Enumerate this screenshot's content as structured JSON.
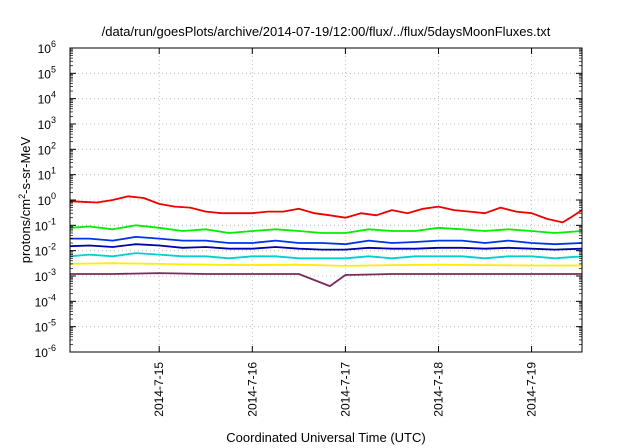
{
  "chart_data": {
    "type": "line",
    "title": "/data/run/goesPlots/archive/2014-07-19/12:00/flux/../flux/5daysMoonFluxes.txt",
    "xlabel": "Coordinated Universal Time (UTC)",
    "ylabel": {
      "before": "protons/cm",
      "sup": "2",
      "after": "-s-sr-MeV"
    },
    "y_scale": "log",
    "ylim": [
      1e-06,
      1000000.0
    ],
    "y_ticks": [
      {
        "value": 1e-06,
        "base": "10",
        "exp": "-6"
      },
      {
        "value": 1e-05,
        "base": "10",
        "exp": "-5"
      },
      {
        "value": 0.0001,
        "base": "10",
        "exp": "-4"
      },
      {
        "value": 0.001,
        "base": "10",
        "exp": "-3"
      },
      {
        "value": 0.01,
        "base": "10",
        "exp": "-2"
      },
      {
        "value": 0.1,
        "base": "10",
        "exp": "-1"
      },
      {
        "value": 1,
        "base": "10",
        "exp": "0"
      },
      {
        "value": 10,
        "base": "10",
        "exp": "1"
      },
      {
        "value": 100,
        "base": "10",
        "exp": "2"
      },
      {
        "value": 1000,
        "base": "10",
        "exp": "3"
      },
      {
        "value": 10000,
        "base": "10",
        "exp": "4"
      },
      {
        "value": 100000,
        "base": "10",
        "exp": "5"
      },
      {
        "value": 1000000,
        "base": "10",
        "exp": "6"
      }
    ],
    "xlim": [
      "2014-07-14T01:00",
      "2014-07-19T13:00"
    ],
    "x_ticks": [
      {
        "value": "2014-07-15T00:00",
        "label": "2014-7-15"
      },
      {
        "value": "2014-07-16T00:00",
        "label": "2014-7-16"
      },
      {
        "value": "2014-07-17T00:00",
        "label": "2014-7-17"
      },
      {
        "value": "2014-07-18T00:00",
        "label": "2014-7-18"
      },
      {
        "value": "2014-07-19T00:00",
        "label": "2014-7-19"
      }
    ],
    "grid": true,
    "legend": "none",
    "series": [
      {
        "color": "#ee0000",
        "x": [
          "2014-07-14T01:00",
          "2014-07-14T04:00",
          "2014-07-14T08:00",
          "2014-07-14T12:00",
          "2014-07-14T16:00",
          "2014-07-14T20:00",
          "2014-07-15T00:00",
          "2014-07-15T04:00",
          "2014-07-15T08:00",
          "2014-07-15T12:00",
          "2014-07-15T16:00",
          "2014-07-15T20:00",
          "2014-07-16T00:00",
          "2014-07-16T04:00",
          "2014-07-16T08:00",
          "2014-07-16T12:00",
          "2014-07-16T16:00",
          "2014-07-16T20:00",
          "2014-07-17T00:00",
          "2014-07-17T04:00",
          "2014-07-17T08:00",
          "2014-07-17T12:00",
          "2014-07-17T16:00",
          "2014-07-17T20:00",
          "2014-07-18T00:00",
          "2014-07-18T04:00",
          "2014-07-18T08:00",
          "2014-07-18T12:00",
          "2014-07-18T16:00",
          "2014-07-18T20:00",
          "2014-07-19T00:00",
          "2014-07-19T04:00",
          "2014-07-19T08:00",
          "2014-07-19T10:00",
          "2014-07-19T13:00"
        ],
        "y": [
          0.9,
          0.85,
          0.8,
          1.0,
          1.4,
          1.2,
          0.7,
          0.55,
          0.5,
          0.35,
          0.3,
          0.3,
          0.3,
          0.35,
          0.35,
          0.45,
          0.3,
          0.25,
          0.2,
          0.3,
          0.25,
          0.4,
          0.3,
          0.45,
          0.55,
          0.4,
          0.35,
          0.3,
          0.5,
          0.35,
          0.3,
          0.18,
          0.13,
          0.2,
          0.4
        ]
      },
      {
        "color": "#00ee00",
        "x": [
          "2014-07-14T01:00",
          "2014-07-14T06:00",
          "2014-07-14T12:00",
          "2014-07-14T18:00",
          "2014-07-15T00:00",
          "2014-07-15T06:00",
          "2014-07-15T12:00",
          "2014-07-15T18:00",
          "2014-07-16T00:00",
          "2014-07-16T06:00",
          "2014-07-16T12:00",
          "2014-07-16T18:00",
          "2014-07-17T00:00",
          "2014-07-17T06:00",
          "2014-07-17T12:00",
          "2014-07-17T18:00",
          "2014-07-18T00:00",
          "2014-07-18T06:00",
          "2014-07-18T12:00",
          "2014-07-18T18:00",
          "2014-07-19T00:00",
          "2014-07-19T06:00",
          "2014-07-19T13:00"
        ],
        "y": [
          0.08,
          0.09,
          0.07,
          0.1,
          0.08,
          0.06,
          0.07,
          0.05,
          0.06,
          0.07,
          0.06,
          0.05,
          0.05,
          0.07,
          0.06,
          0.06,
          0.08,
          0.07,
          0.06,
          0.07,
          0.06,
          0.05,
          0.06
        ]
      },
      {
        "color": "#00d0d0",
        "x": [
          "2014-07-14T01:00",
          "2014-07-14T06:00",
          "2014-07-14T12:00",
          "2014-07-14T18:00",
          "2014-07-15T00:00",
          "2014-07-15T06:00",
          "2014-07-15T12:00",
          "2014-07-15T18:00",
          "2014-07-16T00:00",
          "2014-07-16T06:00",
          "2014-07-16T12:00",
          "2014-07-16T18:00",
          "2014-07-17T00:00",
          "2014-07-17T06:00",
          "2014-07-17T12:00",
          "2014-07-17T18:00",
          "2014-07-18T00:00",
          "2014-07-18T06:00",
          "2014-07-18T12:00",
          "2014-07-18T18:00",
          "2014-07-19T00:00",
          "2014-07-19T06:00",
          "2014-07-19T13:00"
        ],
        "y": [
          0.006,
          0.007,
          0.006,
          0.008,
          0.007,
          0.006,
          0.006,
          0.005,
          0.006,
          0.006,
          0.005,
          0.005,
          0.005,
          0.006,
          0.005,
          0.006,
          0.006,
          0.006,
          0.005,
          0.006,
          0.006,
          0.005,
          0.006
        ]
      },
      {
        "color": "#0033ee",
        "x": [
          "2014-07-14T01:00",
          "2014-07-14T06:00",
          "2014-07-14T12:00",
          "2014-07-14T18:00",
          "2014-07-15T00:00",
          "2014-07-15T06:00",
          "2014-07-15T12:00",
          "2014-07-15T18:00",
          "2014-07-16T00:00",
          "2014-07-16T06:00",
          "2014-07-16T12:00",
          "2014-07-16T18:00",
          "2014-07-17T00:00",
          "2014-07-17T06:00",
          "2014-07-17T12:00",
          "2014-07-17T18:00",
          "2014-07-18T00:00",
          "2014-07-18T06:00",
          "2014-07-18T12:00",
          "2014-07-18T18:00",
          "2014-07-19T00:00",
          "2014-07-19T06:00",
          "2014-07-19T13:00"
        ],
        "y": [
          0.03,
          0.03,
          0.025,
          0.035,
          0.03,
          0.025,
          0.025,
          0.02,
          0.02,
          0.025,
          0.02,
          0.02,
          0.018,
          0.025,
          0.02,
          0.022,
          0.025,
          0.025,
          0.02,
          0.025,
          0.02,
          0.018,
          0.02
        ]
      },
      {
        "color": "#0000aa",
        "x": [
          "2014-07-14T01:00",
          "2014-07-14T06:00",
          "2014-07-14T12:00",
          "2014-07-14T18:00",
          "2014-07-15T00:00",
          "2014-07-15T06:00",
          "2014-07-15T12:00",
          "2014-07-15T18:00",
          "2014-07-16T00:00",
          "2014-07-16T06:00",
          "2014-07-16T12:00",
          "2014-07-16T18:00",
          "2014-07-17T00:00",
          "2014-07-17T06:00",
          "2014-07-17T12:00",
          "2014-07-17T18:00",
          "2014-07-18T00:00",
          "2014-07-18T06:00",
          "2014-07-18T12:00",
          "2014-07-18T18:00",
          "2014-07-19T00:00",
          "2014-07-19T06:00",
          "2014-07-19T13:00"
        ],
        "y": [
          0.015,
          0.016,
          0.014,
          0.018,
          0.016,
          0.013,
          0.014,
          0.012,
          0.012,
          0.014,
          0.012,
          0.011,
          0.011,
          0.013,
          0.012,
          0.012,
          0.013,
          0.013,
          0.012,
          0.013,
          0.012,
          0.011,
          0.012
        ]
      },
      {
        "color": "#ffee00",
        "x": [
          "2014-07-14T01:00",
          "2014-07-14T12:00",
          "2014-07-15T00:00",
          "2014-07-15T12:00",
          "2014-07-16T00:00",
          "2014-07-16T12:00",
          "2014-07-17T00:00",
          "2014-07-17T12:00",
          "2014-07-18T00:00",
          "2014-07-18T12:00",
          "2014-07-19T00:00",
          "2014-07-19T13:00"
        ],
        "y": [
          0.003,
          0.0032,
          0.003,
          0.0028,
          0.0027,
          0.0028,
          0.0025,
          0.0027,
          0.0028,
          0.0027,
          0.0026,
          0.0026
        ]
      },
      {
        "color": "#7a2a5a",
        "x": [
          "2014-07-14T01:00",
          "2014-07-14T12:00",
          "2014-07-15T00:00",
          "2014-07-15T12:00",
          "2014-07-16T00:00",
          "2014-07-16T12:00",
          "2014-07-16T20:00",
          "2014-07-17T00:00",
          "2014-07-17T12:00",
          "2014-07-18T00:00",
          "2014-07-18T12:00",
          "2014-07-19T00:00",
          "2014-07-19T13:00"
        ],
        "y": [
          0.0012,
          0.0012,
          0.0013,
          0.0012,
          0.0012,
          0.0012,
          0.0004,
          0.0011,
          0.0012,
          0.0012,
          0.0012,
          0.0012,
          0.0012
        ]
      }
    ]
  }
}
